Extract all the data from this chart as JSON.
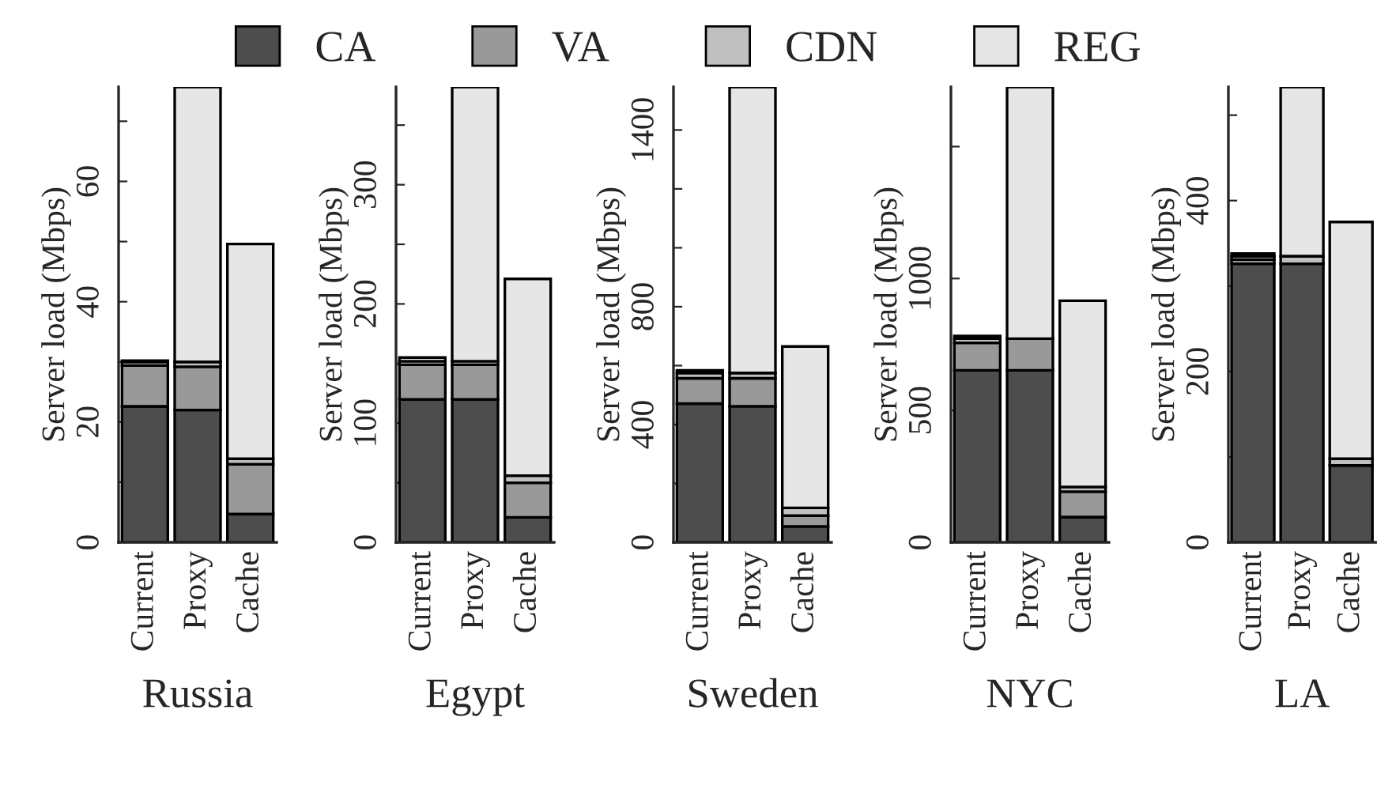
{
  "chart_data": [
    {
      "type": "bar",
      "stacked": true,
      "xlabel": "Russia",
      "ylabel": "Server load (Mbps)",
      "categories": [
        "Current",
        "Proxy",
        "Cache"
      ],
      "ylim": [
        0,
        75.7
      ],
      "yticks": [
        0,
        {
          "value": 10,
          "label": null
        },
        20,
        {
          "value": 30,
          "label": null
        },
        40,
        {
          "value": 50,
          "label": null
        },
        60,
        {
          "value": 70,
          "label": null
        }
      ],
      "legend": "top",
      "grid": false,
      "series": [
        {
          "name": "CA",
          "color": "#4d4d4d",
          "values": [
            22.6,
            22.0,
            4.7
          ]
        },
        {
          "name": "VA",
          "color": "#999999",
          "values": [
            6.8,
            7.2,
            8.3
          ]
        },
        {
          "name": "CDN",
          "color": "#c0c0c0",
          "values": [
            0.6,
            0.8,
            0.9
          ]
        },
        {
          "name": "REG",
          "color": "#e6e6e6",
          "values": [
            0.2,
            45.7,
            35.7
          ]
        }
      ]
    },
    {
      "type": "bar",
      "stacked": true,
      "xlabel": "Egypt",
      "ylabel": "Server load (Mbps)",
      "categories": [
        "Current",
        "Proxy",
        "Cache"
      ],
      "ylim": [
        0,
        382
      ],
      "yticks": [
        0,
        {
          "value": 50,
          "label": null
        },
        100,
        {
          "value": 150,
          "label": null
        },
        200,
        {
          "value": 250,
          "label": null
        },
        300,
        {
          "value": 350,
          "label": null
        }
      ],
      "grid": false,
      "series": [
        {
          "color": "#4d4d4d",
          "values": [
            120,
            120,
            21
          ]
        },
        {
          "color": "#999999",
          "values": [
            29,
            29,
            29
          ]
        },
        {
          "color": "#c0c0c0",
          "values": [
            3,
            3,
            6
          ]
        },
        {
          "color": "#e6e6e6",
          "values": [
            3,
            230,
            165
          ]
        }
      ]
    },
    {
      "type": "bar",
      "stacked": true,
      "xlabel": "Sweden",
      "ylabel": "Server load (Mbps)",
      "categories": [
        "Current",
        "Proxy",
        "Cache"
      ],
      "ylim": [
        0,
        1546
      ],
      "yticks": [
        0,
        {
          "value": 200,
          "label": null
        },
        400,
        {
          "value": 600,
          "label": null
        },
        800,
        {
          "value": 1000,
          "label": null
        },
        {
          "value": 1200,
          "label": null
        },
        1400
      ],
      "grid": false,
      "series": [
        {
          "color": "#4d4d4d",
          "values": [
            471,
            462,
            54
          ]
        },
        {
          "color": "#999999",
          "values": [
            86,
            95,
            37
          ]
        },
        {
          "color": "#c0c0c0",
          "values": [
            18,
            18,
            26
          ]
        },
        {
          "color": "#e6e6e6",
          "values": [
            9,
            971,
            548
          ]
        }
      ]
    },
    {
      "type": "bar",
      "stacked": true,
      "xlabel": "NYC",
      "ylabel": "Server load (Mbps)",
      "categories": [
        "Current",
        "Proxy",
        "Cache"
      ],
      "ylim": [
        0,
        1726
      ],
      "yticks": [
        0,
        500,
        1000,
        {
          "value": 1500,
          "label": null
        }
      ],
      "grid": false,
      "series": [
        {
          "color": "#4d4d4d",
          "values": [
            652,
            652,
            96
          ]
        },
        {
          "color": "#999999",
          "values": [
            104,
            120,
            96
          ]
        },
        {
          "color": "#c0c0c0",
          "values": [
            16,
            null,
            18
          ]
        },
        {
          "color": "#e6e6e6",
          "values": [
            10,
            954,
            706
          ]
        }
      ]
    },
    {
      "type": "bar",
      "stacked": true,
      "xlabel": "LA",
      "ylabel": "Server load (Mbps)",
      "categories": [
        "Current",
        "Proxy",
        "Cache"
      ],
      "ylim": [
        0,
        533
      ],
      "yticks": [
        0,
        {
          "value": 100,
          "label": null
        },
        200,
        {
          "value": 300,
          "label": null
        },
        400,
        {
          "value": 500,
          "label": null
        }
      ],
      "grid": false,
      "series": [
        {
          "color": "#4d4d4d",
          "values": [
            326,
            326,
            90
          ]
        },
        {
          "color": "#999999",
          "values": [
            5,
            null,
            null
          ]
        },
        {
          "color": "#c0c0c0",
          "values": [
            4,
            9,
            8
          ]
        },
        {
          "color": "#e6e6e6",
          "values": [
            3,
            198,
            277
          ]
        }
      ]
    }
  ]
}
